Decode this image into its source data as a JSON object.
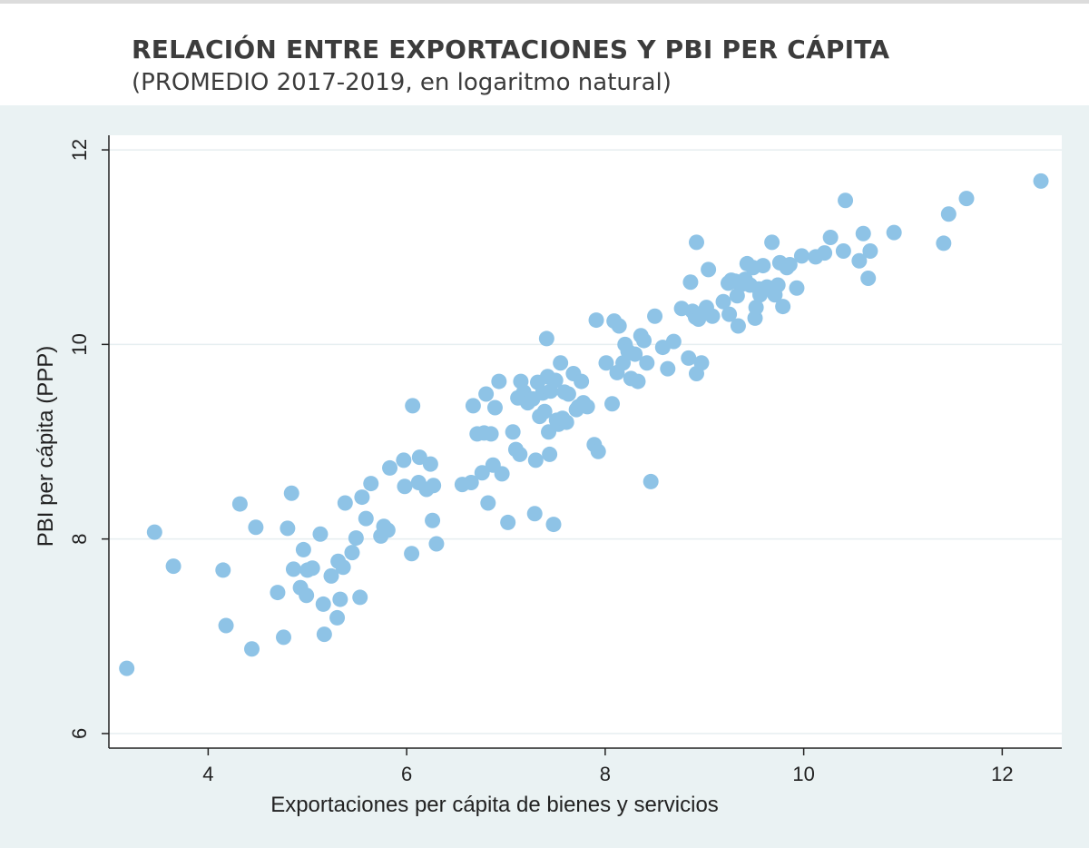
{
  "title": "RELACIÓN ENTRE EXPORTACIONES Y PBI PER CÁPITA",
  "subtitle": "(PROMEDIO 2017-2019, en logaritmo natural)",
  "colors": {
    "marker": "#8ec3e6",
    "panel_background": "#eaf2f3",
    "plot_background": "#ffffff",
    "gridline": "#e6eef0",
    "axis": "#222222"
  },
  "chart_data": {
    "type": "scatter",
    "title": "RELACIÓN ENTRE EXPORTACIONES Y PBI PER CÁPITA",
    "subtitle": "(PROMEDIO 2017-2019, en logaritmo natural)",
    "xlabel": "Exportaciones per cápita de bienes y servicios",
    "ylabel": "PBI per cápita (PPP)",
    "xlim": [
      3.0,
      12.6
    ],
    "ylim": [
      5.85,
      12.15
    ],
    "xticks": [
      "4",
      "6",
      "8",
      "10",
      "12"
    ],
    "yticks": [
      "6",
      "8",
      "10",
      "12"
    ],
    "grid": "horizontal",
    "points": [
      [
        3.18,
        6.67
      ],
      [
        3.46,
        8.07
      ],
      [
        3.65,
        7.72
      ],
      [
        4.15,
        7.68
      ],
      [
        4.18,
        7.11
      ],
      [
        4.32,
        8.36
      ],
      [
        4.44,
        6.87
      ],
      [
        4.48,
        8.12
      ],
      [
        4.7,
        7.45
      ],
      [
        4.76,
        6.99
      ],
      [
        4.8,
        8.11
      ],
      [
        4.84,
        8.47
      ],
      [
        4.86,
        7.69
      ],
      [
        4.93,
        7.5
      ],
      [
        4.96,
        7.89
      ],
      [
        4.99,
        7.42
      ],
      [
        5.0,
        7.68
      ],
      [
        5.05,
        7.7
      ],
      [
        5.13,
        8.05
      ],
      [
        5.16,
        7.33
      ],
      [
        5.17,
        7.02
      ],
      [
        5.24,
        7.62
      ],
      [
        5.3,
        7.19
      ],
      [
        5.31,
        7.77
      ],
      [
        5.33,
        7.38
      ],
      [
        5.36,
        7.71
      ],
      [
        5.38,
        8.37
      ],
      [
        5.45,
        7.86
      ],
      [
        5.49,
        8.01
      ],
      [
        5.53,
        7.4
      ],
      [
        5.55,
        8.43
      ],
      [
        5.59,
        8.21
      ],
      [
        5.64,
        8.57
      ],
      [
        5.74,
        8.03
      ],
      [
        5.77,
        8.13
      ],
      [
        5.81,
        8.09
      ],
      [
        5.83,
        8.73
      ],
      [
        5.97,
        8.81
      ],
      [
        5.98,
        8.54
      ],
      [
        6.05,
        7.85
      ],
      [
        6.06,
        9.37
      ],
      [
        6.12,
        8.58
      ],
      [
        6.13,
        8.84
      ],
      [
        6.2,
        8.51
      ],
      [
        6.24,
        8.77
      ],
      [
        6.26,
        8.19
      ],
      [
        6.27,
        8.55
      ],
      [
        6.3,
        7.95
      ],
      [
        6.56,
        8.56
      ],
      [
        6.65,
        8.58
      ],
      [
        6.67,
        9.37
      ],
      [
        6.71,
        9.08
      ],
      [
        6.76,
        8.68
      ],
      [
        6.78,
        9.09
      ],
      [
        6.8,
        9.49
      ],
      [
        6.82,
        8.37
      ],
      [
        6.85,
        9.08
      ],
      [
        6.87,
        8.76
      ],
      [
        6.89,
        9.35
      ],
      [
        6.93,
        9.62
      ],
      [
        6.96,
        8.67
      ],
      [
        7.02,
        8.17
      ],
      [
        7.07,
        9.1
      ],
      [
        7.1,
        8.92
      ],
      [
        7.12,
        9.45
      ],
      [
        7.14,
        8.87
      ],
      [
        7.15,
        9.62
      ],
      [
        7.18,
        9.51
      ],
      [
        7.22,
        9.4
      ],
      [
        7.27,
        9.44
      ],
      [
        7.29,
        8.26
      ],
      [
        7.3,
        8.81
      ],
      [
        7.32,
        9.61
      ],
      [
        7.34,
        9.26
      ],
      [
        7.37,
        9.5
      ],
      [
        7.39,
        9.31
      ],
      [
        7.41,
        10.06
      ],
      [
        7.42,
        9.67
      ],
      [
        7.43,
        9.1
      ],
      [
        7.44,
        8.87
      ],
      [
        7.45,
        9.52
      ],
      [
        7.48,
        8.15
      ],
      [
        7.5,
        9.63
      ],
      [
        7.51,
        9.22
      ],
      [
        7.53,
        9.18
      ],
      [
        7.55,
        9.81
      ],
      [
        7.57,
        9.24
      ],
      [
        7.59,
        9.51
      ],
      [
        7.61,
        9.2
      ],
      [
        7.63,
        9.49
      ],
      [
        7.68,
        9.7
      ],
      [
        7.71,
        9.33
      ],
      [
        7.73,
        9.36
      ],
      [
        7.76,
        9.62
      ],
      [
        7.78,
        9.4
      ],
      [
        7.82,
        9.36
      ],
      [
        7.89,
        8.97
      ],
      [
        7.91,
        10.25
      ],
      [
        7.93,
        8.9
      ],
      [
        8.01,
        9.81
      ],
      [
        8.07,
        9.39
      ],
      [
        8.09,
        10.24
      ],
      [
        8.12,
        9.71
      ],
      [
        8.14,
        10.19
      ],
      [
        8.18,
        9.81
      ],
      [
        8.2,
        10.0
      ],
      [
        8.23,
        9.93
      ],
      [
        8.26,
        9.65
      ],
      [
        8.3,
        9.9
      ],
      [
        8.33,
        9.62
      ],
      [
        8.36,
        10.09
      ],
      [
        8.39,
        10.04
      ],
      [
        8.42,
        9.81
      ],
      [
        8.46,
        8.59
      ],
      [
        8.5,
        10.29
      ],
      [
        8.58,
        9.97
      ],
      [
        8.63,
        9.75
      ],
      [
        8.69,
        10.03
      ],
      [
        8.77,
        10.37
      ],
      [
        8.84,
        9.86
      ],
      [
        8.86,
        10.64
      ],
      [
        8.88,
        10.34
      ],
      [
        8.91,
        10.28
      ],
      [
        8.92,
        11.05
      ],
      [
        8.94,
        10.26
      ],
      [
        8.92,
        9.7
      ],
      [
        8.97,
        9.81
      ],
      [
        9.02,
        10.38
      ],
      [
        9.04,
        10.77
      ],
      [
        9.08,
        10.29
      ],
      [
        9.19,
        10.44
      ],
      [
        9.24,
        10.63
      ],
      [
        9.25,
        10.31
      ],
      [
        9.27,
        10.66
      ],
      [
        9.31,
        10.65
      ],
      [
        9.33,
        10.5
      ],
      [
        9.34,
        10.19
      ],
      [
        9.38,
        10.62
      ],
      [
        9.41,
        10.67
      ],
      [
        9.43,
        10.83
      ],
      [
        9.46,
        10.61
      ],
      [
        9.49,
        10.79
      ],
      [
        9.51,
        10.27
      ],
      [
        9.52,
        10.38
      ],
      [
        9.55,
        10.57
      ],
      [
        9.56,
        10.51
      ],
      [
        9.59,
        10.81
      ],
      [
        9.63,
        10.59
      ],
      [
        9.68,
        11.05
      ],
      [
        9.71,
        10.51
      ],
      [
        9.74,
        10.61
      ],
      [
        9.76,
        10.84
      ],
      [
        9.79,
        10.39
      ],
      [
        9.83,
        10.79
      ],
      [
        9.86,
        10.82
      ],
      [
        9.93,
        10.58
      ],
      [
        9.98,
        10.91
      ],
      [
        10.12,
        10.9
      ],
      [
        10.21,
        10.94
      ],
      [
        10.27,
        11.1
      ],
      [
        10.4,
        10.96
      ],
      [
        10.42,
        11.48
      ],
      [
        10.56,
        10.86
      ],
      [
        10.6,
        11.14
      ],
      [
        10.65,
        10.68
      ],
      [
        10.67,
        10.96
      ],
      [
        10.91,
        11.15
      ],
      [
        11.41,
        11.04
      ],
      [
        11.46,
        11.34
      ],
      [
        11.64,
        11.5
      ],
      [
        12.39,
        11.68
      ]
    ]
  }
}
